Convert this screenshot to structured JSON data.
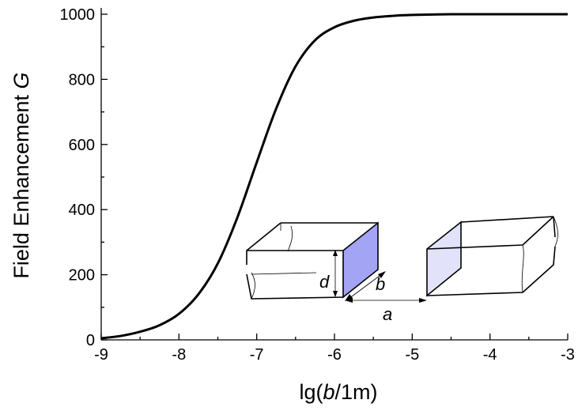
{
  "chart_data": {
    "type": "line",
    "xlabel": "lg(b/1m)",
    "ylabel": "Field Enhancement G",
    "xlim": [
      -9,
      -3
    ],
    "ylim": [
      0,
      1000
    ],
    "xticks": [
      -9,
      -8,
      -7,
      -6,
      -5,
      -4,
      -3
    ],
    "yticks": [
      0,
      200,
      400,
      600,
      800,
      1000
    ],
    "grid": false,
    "series": [
      {
        "x": [
          -9.0,
          -8.75,
          -8.5,
          -8.25,
          -8.0,
          -7.75,
          -7.5,
          -7.25,
          -7.0,
          -6.75,
          -6.5,
          -6.25,
          -6.0,
          -5.75,
          -5.5,
          -5.25,
          -5.0,
          -4.5,
          -4.0,
          -3.5,
          -3.0
        ],
        "y": [
          5,
          12,
          25,
          45,
          80,
          140,
          235,
          375,
          545,
          710,
          840,
          920,
          960,
          980,
          990,
          995,
          998,
          1000,
          1000,
          1000,
          1000
        ]
      }
    ],
    "annotations": [
      "d",
      "b",
      "a"
    ],
    "inset_colors": {
      "left_face": "#a4a4f4",
      "right_face": "#e2e2fb"
    }
  }
}
